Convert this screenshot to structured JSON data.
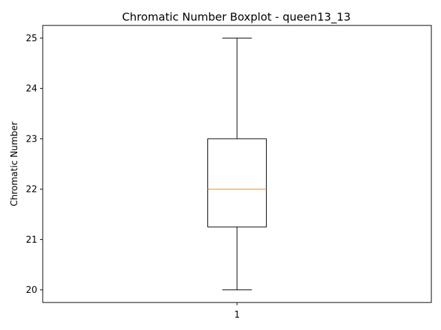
{
  "chart_data": {
    "type": "boxplot",
    "title": "Chromatic Number Boxplot - queen13_13",
    "xlabel": "",
    "ylabel": "Chromatic Number",
    "categories": [
      "1"
    ],
    "boxes": [
      {
        "whisker_low": 20,
        "q1": 21.25,
        "median": 22,
        "q3": 23,
        "whisker_high": 25
      }
    ],
    "ylim": [
      19.75,
      25.25
    ],
    "yticks": [
      20,
      21,
      22,
      23,
      24,
      25
    ],
    "grid": false,
    "colors": {
      "box": "#000000",
      "median": "#ff7f0e",
      "axes": "#000000"
    }
  }
}
